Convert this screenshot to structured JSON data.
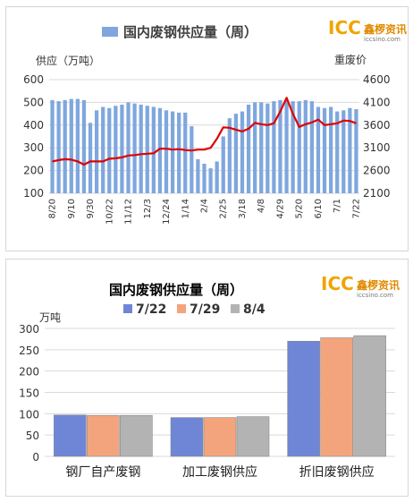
{
  "brand": {
    "logo_text": "ICC",
    "logo_cn": "鑫椤资讯",
    "logo_url": "iccsino.com",
    "colors": {
      "primary": "#f0a400"
    }
  },
  "chart_data": [
    {
      "type": "bar+line",
      "title": "国内废钢供应量（周）",
      "legend_label": "国内废钢供应量（周）",
      "ylabel_left": "供应（万吨）",
      "ylabel_right": "重废价",
      "ylim_left": [
        100,
        600
      ],
      "ylim_right": [
        2100,
        4600
      ],
      "yticks_left": [
        100,
        200,
        300,
        400,
        500,
        600
      ],
      "yticks_right": [
        2100,
        2600,
        3100,
        3600,
        4100,
        4600
      ],
      "x_tick_labels": [
        "8/20",
        "9/10",
        "9/30",
        "10/22",
        "11/12",
        "12/3",
        "12/24",
        "1/14",
        "2/4",
        "2/25",
        "3/18",
        "4/8",
        "4/29",
        "5/20",
        "6/10",
        "7/1",
        "7/22"
      ],
      "tick_every": 3,
      "bar_color": "#7fa7de",
      "line_color": "#e00000",
      "series": [
        {
          "name": "国内废钢供应量（周）",
          "kind": "bar",
          "values": [
            510,
            505,
            510,
            515,
            515,
            510,
            410,
            465,
            480,
            475,
            485,
            490,
            500,
            495,
            490,
            485,
            480,
            475,
            465,
            460,
            455,
            455,
            395,
            250,
            230,
            210,
            240,
            350,
            430,
            450,
            460,
            490,
            500,
            500,
            495,
            505,
            510,
            510,
            505,
            505,
            510,
            505,
            480,
            475,
            480,
            460,
            465,
            475,
            470
          ]
        },
        {
          "kind": "line",
          "values": [
            2800,
            2830,
            2850,
            2840,
            2800,
            2730,
            2800,
            2800,
            2800,
            2860,
            2870,
            2890,
            2930,
            2940,
            2960,
            2970,
            2980,
            3080,
            3080,
            3060,
            3070,
            3050,
            3040,
            3060,
            3060,
            3100,
            3300,
            3550,
            3540,
            3500,
            3460,
            3520,
            3650,
            3620,
            3600,
            3640,
            3900,
            4200,
            3850,
            3560,
            3620,
            3660,
            3720,
            3600,
            3620,
            3640,
            3700,
            3690,
            3640
          ]
        }
      ]
    },
    {
      "type": "bar",
      "title": "国内废钢供应量（周）",
      "ylabel": "万吨",
      "ylim": [
        0,
        300
      ],
      "yticks": [
        0,
        50,
        100,
        150,
        200,
        250,
        300
      ],
      "categories": [
        "钢厂自产废钢",
        "加工废钢供应",
        "折旧废钢供应"
      ],
      "series": [
        {
          "name": "7/22",
          "color": "#6f86d6",
          "values": [
            97,
            91,
            270
          ]
        },
        {
          "name": "7/29",
          "color": "#f4a47c",
          "values": [
            96,
            91,
            278
          ]
        },
        {
          "name": "8/4",
          "color": "#b3b3b3",
          "values": [
            96,
            93,
            283
          ]
        }
      ]
    }
  ]
}
